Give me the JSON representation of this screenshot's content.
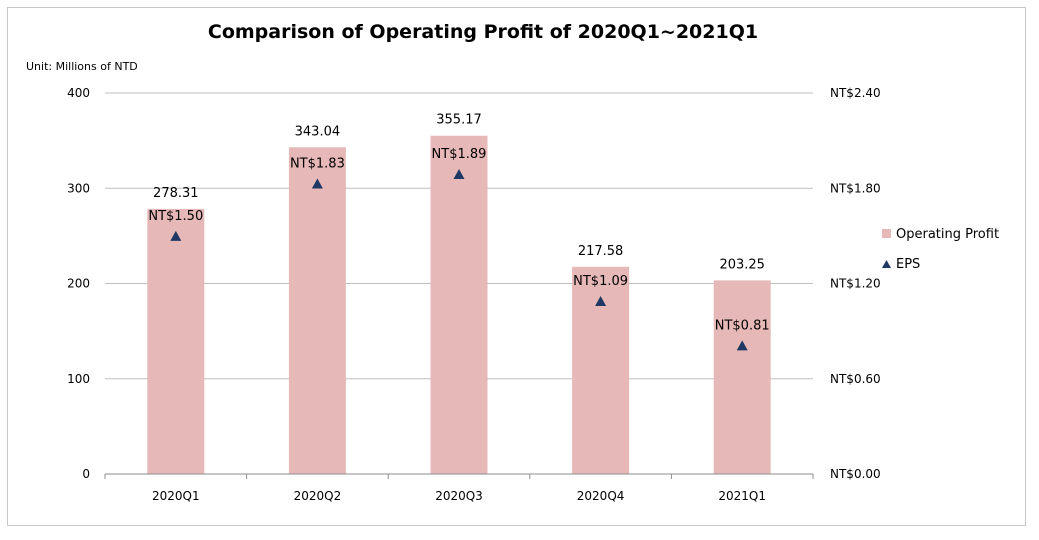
{
  "chart_data": {
    "type": "bar",
    "title": "Comparison of Operating Profit of 2020Q1~2021Q1",
    "unit_label": "Unit: Millions of NTD",
    "categories": [
      "2020Q1",
      "2020Q2",
      "2020Q3",
      "2020Q4",
      "2021Q1"
    ],
    "series": [
      {
        "name": "Operating Profit",
        "type": "bar",
        "axis": "left",
        "values": [
          278.31,
          343.04,
          355.17,
          217.58,
          203.25
        ],
        "labels": [
          "278.31",
          "343.04",
          "355.17",
          "217.58",
          "203.25"
        ],
        "color": "#e6b8b7"
      },
      {
        "name": "EPS",
        "type": "scatter",
        "marker": "triangle",
        "axis": "right",
        "values": [
          1.5,
          1.83,
          1.89,
          1.09,
          0.81
        ],
        "labels": [
          "NT$1.50",
          "NT$1.83",
          "NT$1.89",
          "NT$1.09",
          "NT$0.81"
        ],
        "color": "#1f3864"
      }
    ],
    "y_left": {
      "ylim": [
        0,
        400
      ],
      "ticks": [
        "0",
        "100",
        "200",
        "300",
        "400"
      ]
    },
    "y_right": {
      "ylim": [
        0,
        2.4
      ],
      "ticks": [
        "NT$0.00",
        "NT$0.60",
        "NT$1.20",
        "NT$1.80",
        "NT$2.40"
      ]
    },
    "grid": true,
    "legend_position": "right"
  }
}
